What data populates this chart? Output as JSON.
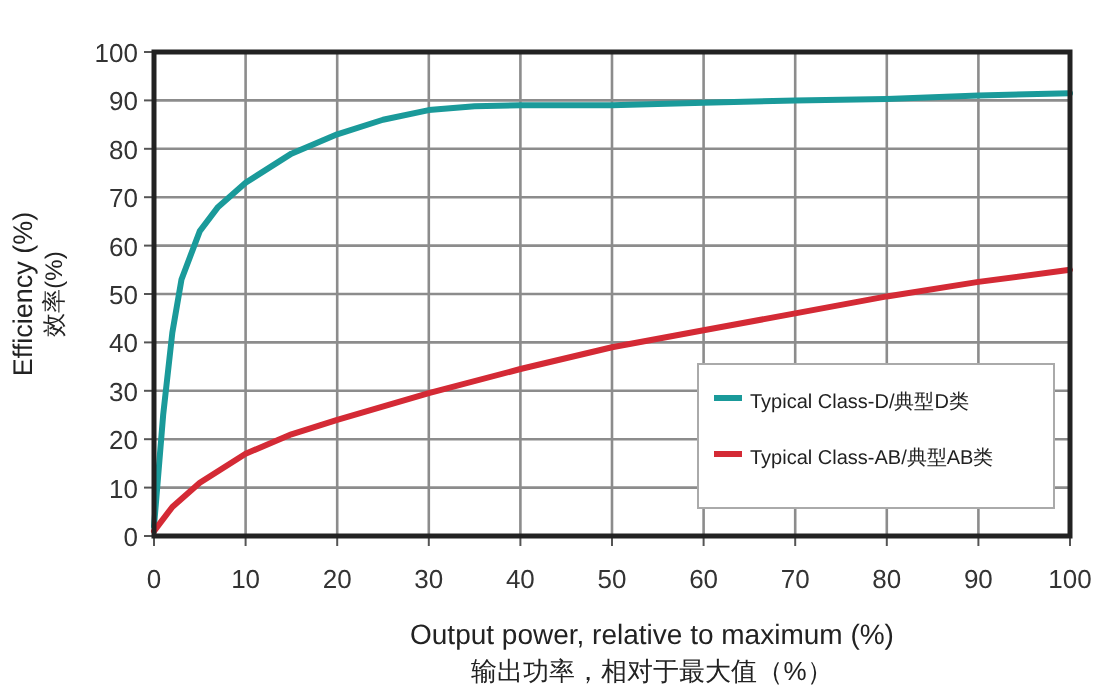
{
  "chart_data": {
    "type": "line",
    "xlabel": "Output power, relative to maximum (%)\n输出功率，相对于最大值（%）",
    "ylabel": "Efficiency (%)\n效率(%)",
    "xlim": [
      0,
      100
    ],
    "xticks": [
      0,
      10,
      20,
      30,
      40,
      50,
      60,
      70,
      80,
      90,
      100
    ],
    "ylim": [
      0,
      100
    ],
    "yticks": [
      0,
      10,
      20,
      30,
      40,
      50,
      60,
      70,
      80,
      90,
      100
    ],
    "grid": true,
    "legend": "bottom right",
    "series": [
      {
        "name": "Typical Class-D/典型D类",
        "color": "#1a9a9a",
        "x": [
          0,
          1,
          2,
          3,
          5,
          7,
          10,
          15,
          20,
          25,
          30,
          35,
          40,
          50,
          60,
          70,
          80,
          90,
          100
        ],
        "values": [
          2,
          25,
          42,
          53,
          63,
          68,
          73,
          79,
          83,
          86,
          88,
          88.8,
          89,
          89,
          89.5,
          90,
          90.3,
          91,
          91.5
        ]
      },
      {
        "name": "Typical Class-AB/典型AB类",
        "color": "#d42a35",
        "x": [
          0,
          2,
          5,
          10,
          15,
          20,
          30,
          40,
          50,
          60,
          70,
          80,
          90,
          100
        ],
        "values": [
          1,
          6,
          11,
          17,
          21,
          24,
          29.5,
          34.5,
          39,
          42.5,
          46,
          49.5,
          52.5,
          55
        ]
      }
    ]
  }
}
